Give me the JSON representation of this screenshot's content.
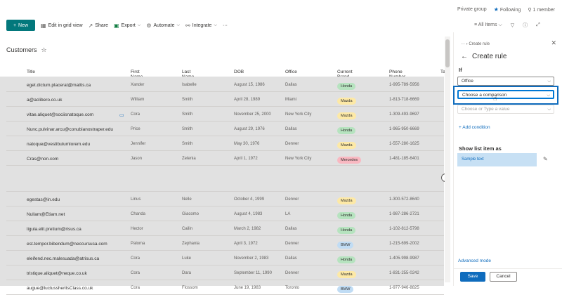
{
  "topbar": {
    "group": "Private group",
    "following": "Following",
    "members": "1 member"
  },
  "cmdbar": {
    "new": "New",
    "grid": "Edit in grid view",
    "share": "Share",
    "export": "Export",
    "automate": "Automate",
    "integrate": "Integrate",
    "more": "···"
  },
  "rightcmd": {
    "view": "All Items"
  },
  "list": {
    "title": "Customers"
  },
  "columns": [
    "Title",
    "First Name",
    "Last Name",
    "DOB",
    "Office",
    "Current Brand",
    "Phone Number",
    "Ta"
  ],
  "rows": [
    {
      "title": "eget.dictum.placerat@mattis.ca",
      "first": "Xander",
      "last": "Isabelle",
      "dob": "August 15, 1986",
      "office": "Dallas",
      "brand": "Honda",
      "phone": "1-995-789-5956"
    },
    {
      "title": "a@aclibero.co.uk",
      "first": "William",
      "last": "Smith",
      "dob": "April 28, 1989",
      "office": "Miami",
      "brand": "Mazda",
      "phone": "1-813-718-6669"
    },
    {
      "title": "vitae.aliquet@sociisnatoque.com",
      "first": "Cora",
      "last": "Smith",
      "dob": "November 25, 2000",
      "office": "New York City",
      "brand": "Mazda",
      "phone": "1-309-493-9697"
    },
    {
      "title": "Nunc.pulvinar.arcu@conubianostraper.edu",
      "first": "Price",
      "last": "Smith",
      "dob": "August 29, 1976",
      "office": "Dallas",
      "brand": "Honda",
      "phone": "1-965-950-6669"
    },
    {
      "title": "natoque@vestibulumlorem.edu",
      "first": "Jennifer",
      "last": "Smith",
      "dob": "May 30, 1976",
      "office": "Denver",
      "brand": "Mazda",
      "phone": "1-557-280-1625"
    },
    {
      "title": "Cras@non.com",
      "first": "Jason",
      "last": "Zelenia",
      "dob": "April 1, 1972",
      "office": "New York City",
      "brand": "Mercedes",
      "phone": "1-481-185-6401"
    },
    {
      "title": "",
      "first": "",
      "last": "",
      "dob": "",
      "office": "",
      "brand": "",
      "phone": ""
    },
    {
      "title": "egestas@in.edu",
      "first": "Linus",
      "last": "Nelle",
      "dob": "October 4, 1999",
      "office": "Denver",
      "brand": "Mazda",
      "phone": "1-300-572-8640"
    },
    {
      "title": "Nullam@Etiam.net",
      "first": "Chanda",
      "last": "Giacomo",
      "dob": "August 4, 1983",
      "office": "LA",
      "brand": "Honda",
      "phone": "1-987-286-2721"
    },
    {
      "title": "ligula.elit.pretium@risus.ca",
      "first": "Hector",
      "last": "Cailin",
      "dob": "March 2, 1982",
      "office": "Dallas",
      "brand": "Honda",
      "phone": "1-102-812-5798"
    },
    {
      "title": "est.tempor.bibendum@neccursusa.com",
      "first": "Paloma",
      "last": "Zephania",
      "dob": "April 3, 1972",
      "office": "Denver",
      "brand": "BMW",
      "phone": "1-215-699-2002"
    },
    {
      "title": "eleifend.nec.malesuada@atrisus.ca",
      "first": "Cora",
      "last": "Luke",
      "dob": "November 2, 1983",
      "office": "Dallas",
      "brand": "Honda",
      "phone": "1-405-998-9987"
    },
    {
      "title": "tristique.aliquet@neque.co.uk",
      "first": "Cora",
      "last": "Dara",
      "dob": "September 11, 1990",
      "office": "Denver",
      "brand": "Mazda",
      "phone": "1-831-255-0242"
    },
    {
      "title": "augue@luctussheritsClass.co.uk",
      "first": "Cora",
      "last": "Flossom",
      "dob": "June 19, 1983",
      "office": "Toronto",
      "brand": "BMW",
      "phone": "1-977-946-8825"
    }
  ],
  "brand_colors": {
    "Honda": "#b6e3bf",
    "Mazda": "#fde9a6",
    "Mercedes": "#f9b8c1",
    "BMW": "#c0dcf4"
  },
  "panel": {
    "crumb": "Create rule",
    "title": "Create rule",
    "if_label": "If",
    "field_value": "Office",
    "comparison_placeholder": "Choose a comparison",
    "value_placeholder": "Choose or Type a value",
    "add_condition": "+ Add condition",
    "show_label": "Show list item as",
    "sample": "Sample text",
    "advanced": "Advanced mode",
    "save": "Save",
    "cancel": "Cancel"
  }
}
